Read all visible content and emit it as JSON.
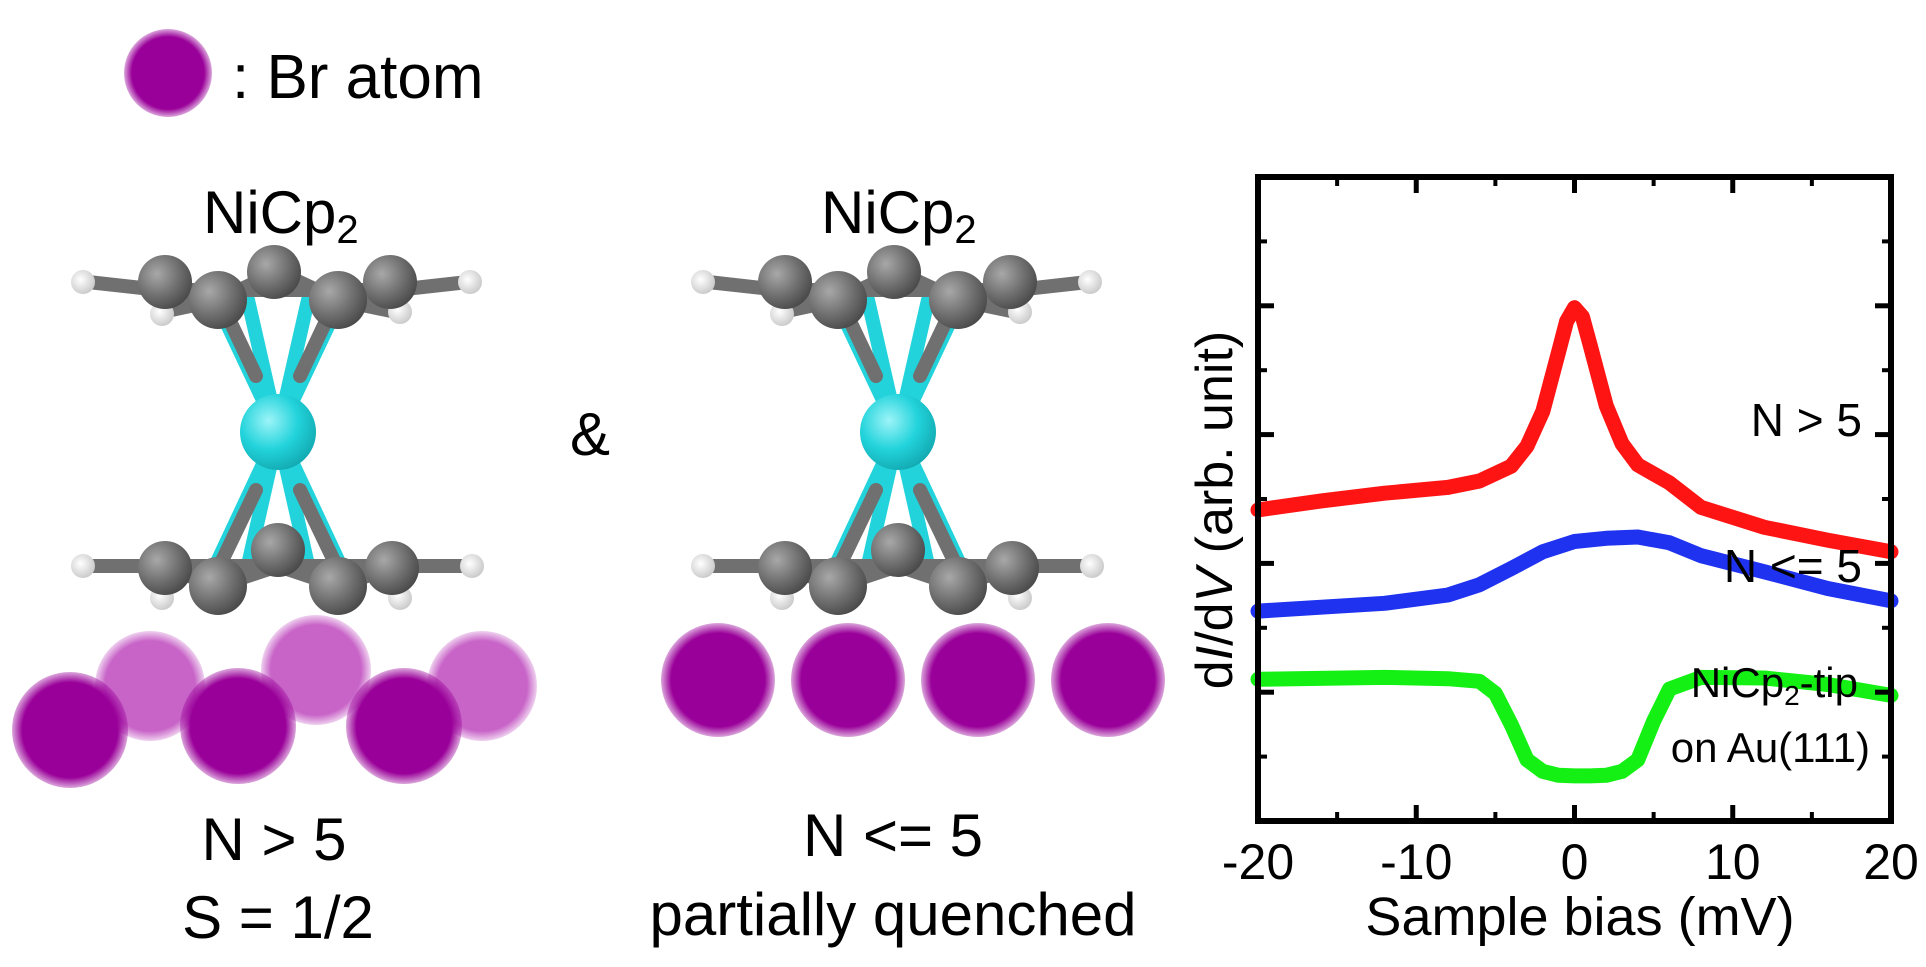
{
  "legend": {
    "atom_label": ": Br atom",
    "atom_color": "#990099"
  },
  "molecule_left": {
    "title_main": "NiCp",
    "title_sub": "2",
    "condition": "N > 5",
    "spin": "S = 1/2"
  },
  "connector": "&",
  "molecule_right": {
    "title_main": "NiCp",
    "title_sub": "2",
    "condition": "N <= 5",
    "spin": "partially quenched"
  },
  "colors": {
    "carbon": "#6b6b6b",
    "nickel": "#22d3db",
    "hydrogen": "#eeeeee",
    "br_front": "#990099",
    "br_back": "#c864c8"
  },
  "chart_data": {
    "type": "line",
    "xlabel": "Sample bias (mV)",
    "ylabel_d1": "d",
    "ylabel_I": "I",
    "ylabel_d2": "/d",
    "ylabel_V": "V",
    "ylabel_rest": " (arb. unit)",
    "xlim": [
      -20,
      20
    ],
    "ylim": [
      0,
      100
    ],
    "x_ticks": [
      -20,
      -10,
      0,
      10,
      20
    ],
    "x_tick_labels": [
      "-20",
      "-10",
      "0",
      "10",
      "20"
    ],
    "y_ticks": [
      10,
      20,
      30,
      40,
      50,
      60,
      70,
      80,
      90
    ],
    "series": [
      {
        "name": "N > 5",
        "color": "#ff1414",
        "x": [
          -20,
          -16,
          -12,
          -8,
          -6,
          -4,
          -3,
          -2,
          -1,
          -0.5,
          0,
          0.5,
          1,
          2,
          3,
          4,
          6,
          8,
          12,
          16,
          20
        ],
        "y": [
          48.3,
          49.7,
          50.9,
          51.8,
          52.8,
          55.1,
          58.2,
          63.6,
          72.9,
          77.6,
          79.7,
          78.3,
          73.8,
          64.5,
          58.6,
          55.3,
          52.5,
          48.7,
          45.6,
          43.6,
          41.8
        ]
      },
      {
        "name": "N <= 5",
        "color": "#1e32f0",
        "x": [
          -20,
          -16,
          -12,
          -8,
          -6,
          -4,
          -2,
          0,
          2,
          4,
          6,
          8,
          12,
          16,
          20
        ],
        "y": [
          32.6,
          33.2,
          33.8,
          35.1,
          36.7,
          39.2,
          41.8,
          43.4,
          43.9,
          44.1,
          43.2,
          41.2,
          38.7,
          36.1,
          34.2
        ]
      },
      {
        "name": "NiCp2-tip on Au(111)",
        "color": "#14f014",
        "x": [
          -20,
          -12,
          -8,
          -6,
          -5,
          -4,
          -3,
          -2,
          -1,
          0,
          1,
          2,
          3,
          4,
          5,
          6,
          8,
          12,
          16,
          20
        ],
        "y": [
          22.0,
          22.3,
          22.1,
          21.7,
          19.8,
          15.0,
          9.5,
          7.7,
          7.1,
          7.0,
          7.0,
          7.1,
          7.7,
          9.5,
          15.5,
          20.5,
          22.3,
          22.2,
          21.2,
          19.5
        ]
      }
    ],
    "curve_labels": {
      "red": "N > 5",
      "blue": "N <= 5",
      "green_line1_main": "NiCp",
      "green_line1_sub": "2",
      "green_line1_tail": "-tip",
      "green_line2": "on Au(111)"
    }
  }
}
